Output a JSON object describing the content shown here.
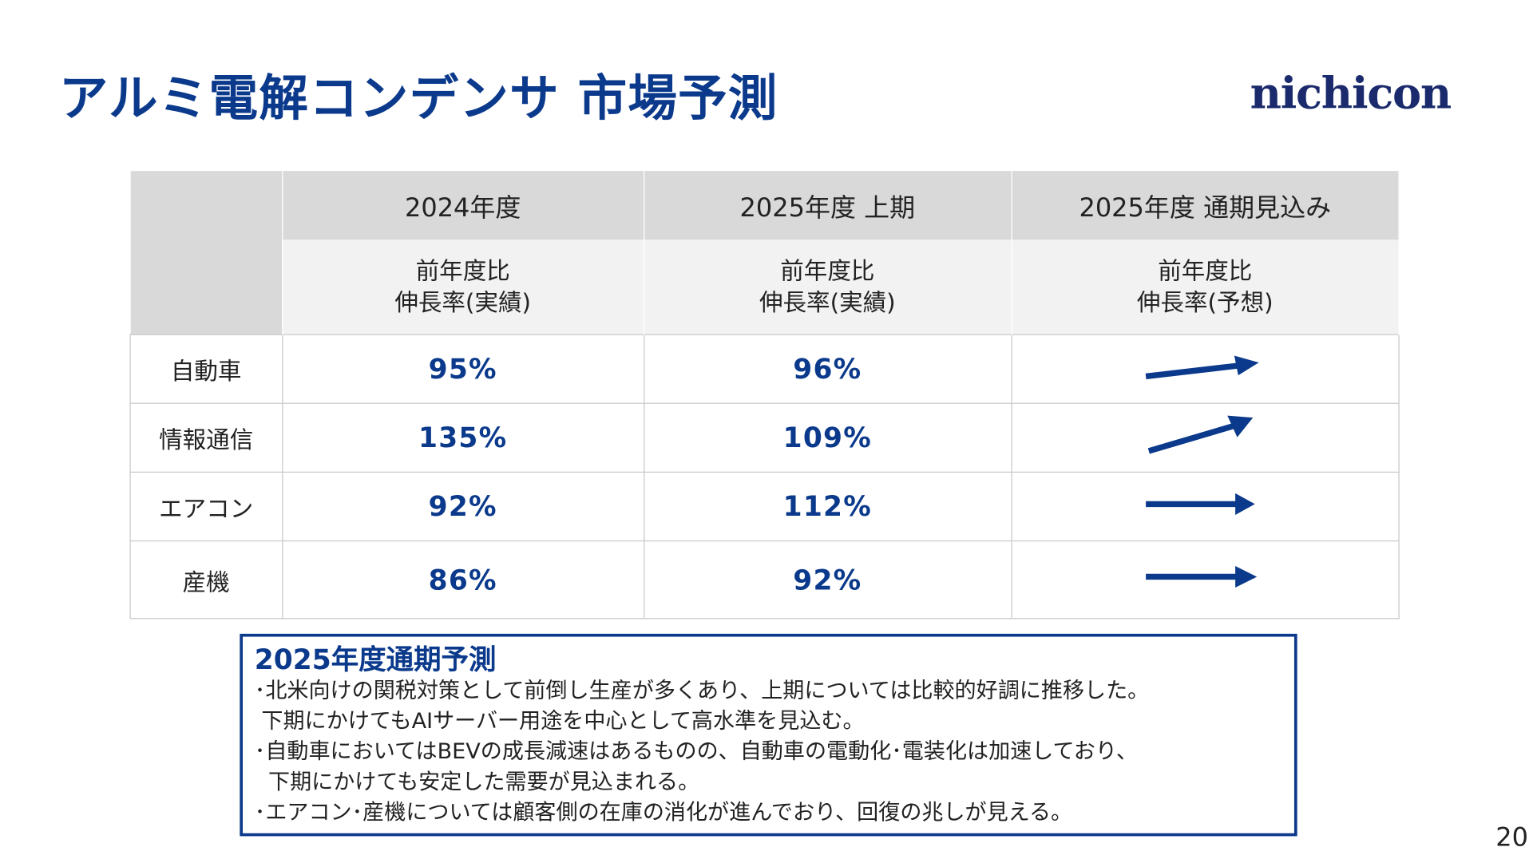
{
  "title": "アルミ電解コンデンサ 市場予測",
  "logo": "nichicon",
  "table": {
    "headers": [
      "",
      "2024年度",
      "2025年度 上期",
      "2025年度 通期見込み"
    ],
    "subheaders": [
      "",
      "前年度比\n伸長率(実績)",
      "前年度比\n伸長率(実績)",
      "前年度比\n伸長率(予想)"
    ],
    "rows": [
      {
        "label": "自動車",
        "fy2024": "95%",
        "fy2025_h1": "96%",
        "outlook": "slightly-up-arrow"
      },
      {
        "label": "情報通信",
        "fy2024": "135%",
        "fy2025_h1": "109%",
        "outlook": "up-arrow"
      },
      {
        "label": "エアコン",
        "fy2024": "92%",
        "fy2025_h1": "112%",
        "outlook": "flat-arrow"
      },
      {
        "label": "産機",
        "fy2024": "86%",
        "fy2025_h1": "92%",
        "outlook": "flat-arrow"
      }
    ]
  },
  "note": {
    "title": "2025年度通期予測",
    "lines": [
      "･北米向けの関税対策として前倒し生産が多くあり、上期については比較的好調に推移した。",
      " 下期にかけてもAIサーバー用途を中心として高水準を見込む。",
      "･自動車においてはBEVの成長減速はあるものの、自動車の電動化･電装化は加速しており、",
      "  下期にかけても安定した需要が見込まれる。",
      "･エアコン･産機については顧客側の在庫の消化が進んでおり、回復の兆しが見える。"
    ]
  },
  "page_number": "20",
  "colors": {
    "accent": "#0b3a8c",
    "header": "#d9d9d9",
    "subheader": "#f2f2f2"
  }
}
